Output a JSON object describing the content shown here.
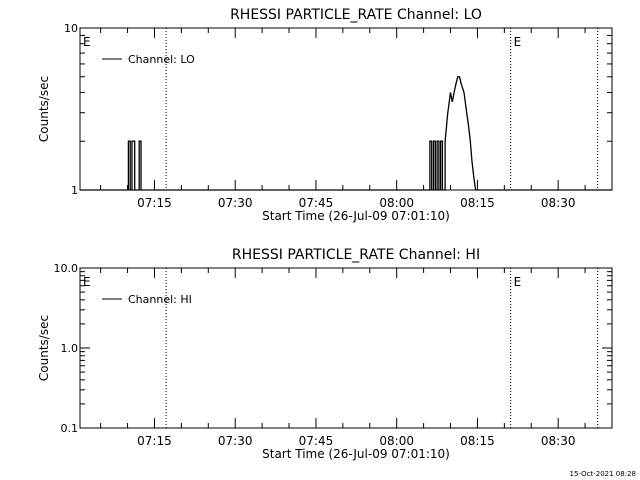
{
  "timestamp": "15-Oct-2021 08:28",
  "chart_data": [
    {
      "type": "line",
      "title": "RHESSI PARTICLE_RATE Channel: LO",
      "xlabel": "Start Time (26-Jul-09 07:01:10)",
      "ylabel": "Counts/sec",
      "yscale": "log",
      "ylim": [
        1,
        10
      ],
      "yticks": [
        "1",
        "10"
      ],
      "xlim": [
        "07:01:10",
        "08:40:00"
      ],
      "xticks": [
        "07:15",
        "07:30",
        "07:45",
        "08:00",
        "08:15",
        "08:30"
      ],
      "legend": "Channel: LO",
      "legend_placement": "top-left",
      "vlines": [
        "07:17:10",
        "08:21:10",
        "08:37:20"
      ],
      "markers": [
        {
          "label": "E",
          "time": "07:01:10"
        },
        {
          "label": "E",
          "time": "08:21:10"
        }
      ],
      "series": [
        {
          "name": "Channel: LO",
          "x": [
            "07:01:10",
            "07:10:10",
            "07:10:10",
            "07:10:30",
            "07:10:30",
            "07:10:50",
            "07:10:50",
            "07:11:20",
            "07:11:20",
            "07:12:10",
            "07:12:10",
            "07:12:30",
            "07:12:30",
            "08:06:10",
            "08:06:10",
            "08:06:30",
            "08:06:30",
            "08:06:50",
            "08:06:50",
            "08:07:10",
            "08:07:10",
            "08:07:30",
            "08:07:30",
            "08:07:50",
            "08:07:50",
            "08:08:10",
            "08:08:10",
            "08:08:30",
            "08:08:30",
            "08:09:00",
            "08:09:00",
            "08:09:30",
            "08:10:00",
            "08:10:20",
            "08:10:40",
            "08:11:00",
            "08:11:20",
            "08:11:40",
            "08:12:00",
            "08:12:30",
            "08:13:00",
            "08:13:20",
            "08:13:40",
            "08:14:00",
            "08:14:20",
            "08:14:40",
            "08:15:00",
            "08:15:20",
            "08:15:20",
            "08:40:00"
          ],
          "y": [
            1,
            1,
            2,
            2,
            1,
            1,
            2,
            2,
            1,
            1,
            2,
            2,
            1,
            1,
            2,
            2,
            1,
            1,
            2,
            2,
            1,
            1,
            2,
            2,
            1,
            1,
            2,
            2,
            1,
            1,
            2,
            3,
            4,
            3.5,
            4,
            4.5,
            5,
            5,
            4.5,
            4,
            3,
            2.5,
            2,
            1.5,
            1.2,
            1,
            1,
            1,
            1,
            1
          ]
        }
      ]
    },
    {
      "type": "line",
      "title": "RHESSI PARTICLE_RATE Channel: HI",
      "xlabel": "Start Time (26-Jul-09 07:01:10)",
      "ylabel": "Counts/sec",
      "yscale": "log",
      "ylim": [
        0.1,
        10
      ],
      "yticks": [
        "0.1",
        "1.0",
        "10.0"
      ],
      "xlim": [
        "07:01:10",
        "08:40:00"
      ],
      "xticks": [
        "07:15",
        "07:30",
        "07:45",
        "08:00",
        "08:15",
        "08:30"
      ],
      "legend": "Channel: HI",
      "legend_placement": "top-left",
      "vlines": [
        "07:17:10",
        "08:21:10",
        "08:37:20"
      ],
      "markers": [
        {
          "label": "E",
          "time": "07:01:10"
        },
        {
          "label": "E",
          "time": "08:21:10"
        }
      ],
      "series": [
        {
          "name": "Channel: HI",
          "x": [],
          "y": []
        }
      ]
    }
  ]
}
